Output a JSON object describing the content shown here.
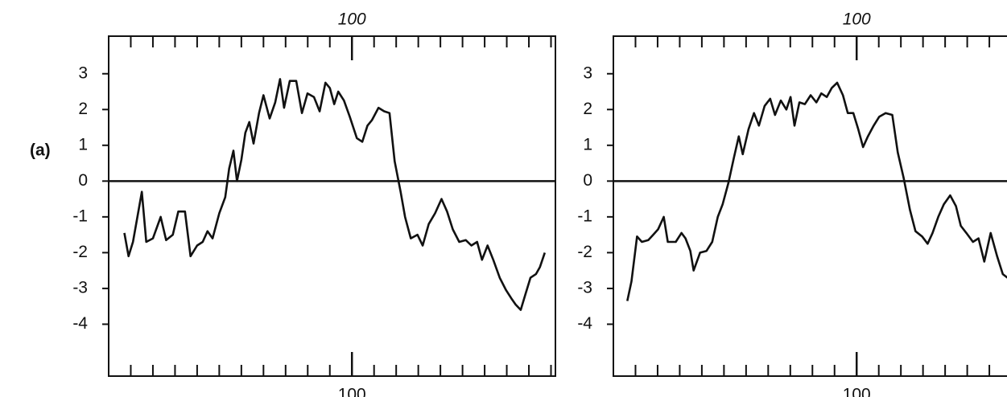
{
  "chart_data": [
    {
      "type": "line",
      "label": "(a)",
      "color": "#111",
      "xlim": [
        -10,
        192
      ],
      "ylim": [
        -5.45,
        4.05
      ],
      "yticks": [
        -4,
        -3,
        -2,
        -1,
        0,
        1,
        2,
        3
      ],
      "xticks": [
        100
      ],
      "minor_xticks": [
        0,
        10,
        20,
        30,
        40,
        50,
        60,
        70,
        80,
        90,
        110,
        120,
        130,
        140,
        150,
        160,
        170,
        180,
        190
      ],
      "mirror_xticks": true,
      "hline": 0,
      "x": [
        -2.9,
        -1,
        1,
        3.3,
        5,
        7,
        10,
        13.5,
        16,
        19,
        21.5,
        24.5,
        27,
        30,
        32.5,
        34.7,
        37,
        40,
        42.7,
        44.5,
        46.4,
        48,
        50,
        51.8,
        53.6,
        55.5,
        58,
        60,
        62.8,
        65.3,
        67.5,
        69.3,
        71.9,
        74.8,
        77.4,
        79.9,
        82.8,
        85.4,
        88,
        90,
        92,
        93.8,
        96.4,
        99,
        102.2,
        104.7,
        107,
        109,
        112,
        114.6,
        117,
        119.3,
        122,
        124,
        126.6,
        129.6,
        132,
        134.7,
        137.6,
        140.5,
        143,
        145.6,
        148.5,
        151.5,
        154,
        156.6,
        158.8,
        161.3,
        163.9,
        166.8,
        169.7,
        172.3,
        174,
        176.3,
        178.5,
        180.7,
        183.2,
        185,
        187.2
      ],
      "values": [
        -1.45,
        -2.1,
        -1.7,
        -0.9,
        -0.3,
        -1.7,
        -1.6,
        -1.0,
        -1.65,
        -1.5,
        -0.85,
        -0.85,
        -2.1,
        -1.8,
        -1.7,
        -1.4,
        -1.6,
        -0.9,
        -0.45,
        0.35,
        0.85,
        0.0,
        0.6,
        1.35,
        1.65,
        1.05,
        1.9,
        2.4,
        1.75,
        2.2,
        2.85,
        2.05,
        2.8,
        2.8,
        1.9,
        2.45,
        2.35,
        1.95,
        2.75,
        2.6,
        2.15,
        2.5,
        2.25,
        1.8,
        1.2,
        1.1,
        1.55,
        1.7,
        2.05,
        1.95,
        1.9,
        0.55,
        -0.3,
        -1.0,
        -1.6,
        -1.5,
        -1.8,
        -1.2,
        -0.9,
        -0.5,
        -0.85,
        -1.35,
        -1.7,
        -1.65,
        -1.8,
        -1.7,
        -2.2,
        -1.8,
        -2.2,
        -2.7,
        -3.05,
        -3.3,
        -3.45,
        -3.6,
        -3.15,
        -2.7,
        -2.6,
        -2.4,
        -2.0
      ]
    },
    {
      "type": "line",
      "color": "#111",
      "xlim": [
        -10,
        192
      ],
      "ylim": [
        -5.45,
        4.05
      ],
      "yticks": [
        -4,
        -3,
        -2,
        -1,
        0,
        1,
        2,
        3
      ],
      "xticks": [
        100
      ],
      "minor_xticks": [
        0,
        10,
        20,
        30,
        40,
        50,
        60,
        70,
        80,
        90,
        110,
        120,
        130,
        140,
        150,
        160,
        170,
        180,
        190
      ],
      "mirror_xticks": true,
      "hline": 0,
      "x": [
        -3.7,
        -1.8,
        0.7,
        2.9,
        5.8,
        8,
        10.2,
        12.8,
        14.6,
        18.2,
        20.8,
        22.6,
        24.8,
        26.3,
        29.2,
        32.1,
        34.7,
        37.2,
        39.4,
        42,
        44.5,
        46.7,
        48.5,
        51.1,
        53.6,
        55.8,
        58.4,
        60.9,
        63.1,
        65.7,
        68.2,
        70.1,
        71.9,
        74.1,
        76.6,
        79.2,
        81.8,
        84,
        86.5,
        88.7,
        91.2,
        93.8,
        96,
        98.5,
        100.7,
        102.9,
        105.1,
        107.7,
        110.2,
        113.1,
        116.1,
        118.6,
        121.2,
        124.1,
        126.6,
        129.6,
        132.1,
        134.3,
        136.9,
        139.4,
        142.3,
        144.9,
        147.1,
        149.6,
        152.6,
        155.1,
        157.7,
        160.6,
        163.5,
        166.1,
        168.2
      ],
      "values": [
        -3.35,
        -2.8,
        -1.55,
        -1.7,
        -1.65,
        -1.5,
        -1.35,
        -1.0,
        -1.7,
        -1.7,
        -1.45,
        -1.6,
        -1.95,
        -2.5,
        -2.0,
        -1.95,
        -1.7,
        -1.0,
        -0.65,
        -0.05,
        0.65,
        1.25,
        0.75,
        1.45,
        1.9,
        1.55,
        2.1,
        2.3,
        1.85,
        2.25,
        2.0,
        2.35,
        1.55,
        2.2,
        2.15,
        2.4,
        2.2,
        2.45,
        2.35,
        2.6,
        2.75,
        2.4,
        1.9,
        1.9,
        1.45,
        0.95,
        1.25,
        1.55,
        1.8,
        1.9,
        1.85,
        0.8,
        0.1,
        -0.8,
        -1.4,
        -1.55,
        -1.75,
        -1.45,
        -1.0,
        -0.65,
        -0.4,
        -0.7,
        -1.25,
        -1.45,
        -1.7,
        -1.6,
        -2.25,
        -1.45,
        -2.1,
        -2.6,
        -2.7
      ]
    }
  ]
}
